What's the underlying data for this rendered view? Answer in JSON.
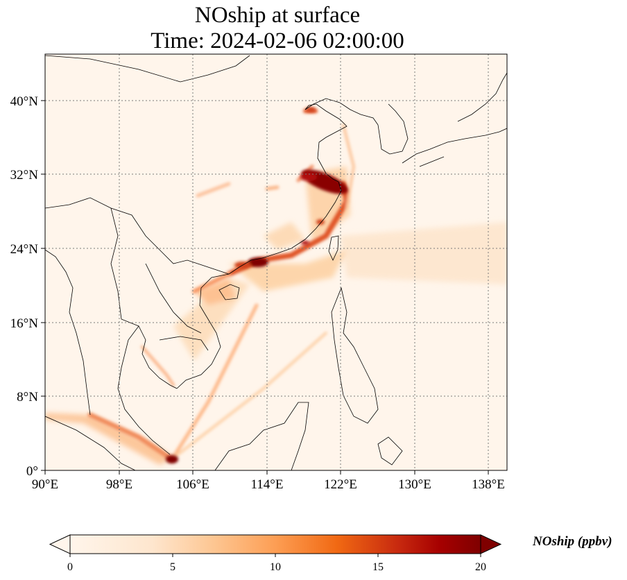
{
  "title": {
    "line1": "NOship at surface",
    "line2": "Time: 2024-02-06 02:00:00"
  },
  "map": {
    "variable": "NOship",
    "level": "surface",
    "lon_ticks": [
      "90°E",
      "98°E",
      "106°E",
      "114°E",
      "122°E",
      "130°E",
      "138°E"
    ],
    "lat_ticks": [
      "0°",
      "8°N",
      "16°N",
      "24°N",
      "32°N",
      "40°N"
    ],
    "lon_range": [
      90,
      140
    ],
    "lat_range": [
      0,
      45
    ],
    "gridlines": "dotted"
  },
  "colorbar": {
    "label": "NOship (ppbv)",
    "ticks": [
      "0",
      "5",
      "10",
      "15",
      "20"
    ],
    "range": [
      0,
      20
    ],
    "extend": "both",
    "colors": [
      "#fff5eb",
      "#fdd3a7",
      "#fd9e54",
      "#e5550d",
      "#a63603",
      "#7f0000"
    ]
  }
}
